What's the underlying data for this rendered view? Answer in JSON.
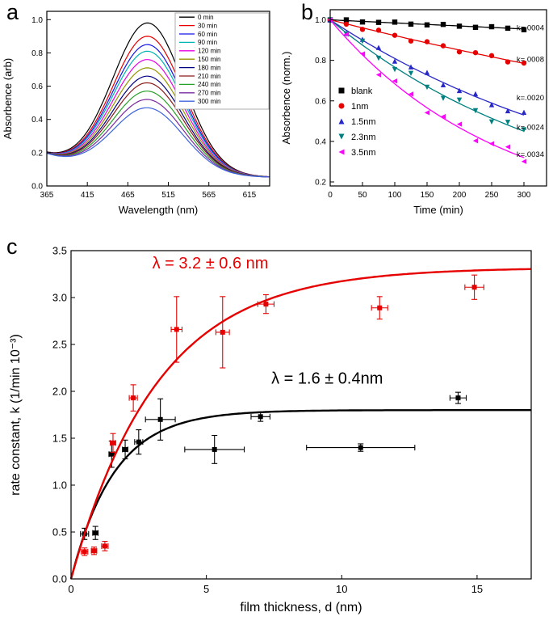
{
  "figure": {
    "background": "#ffffff",
    "panels": {
      "a": "a",
      "b": "b",
      "c": "c"
    }
  },
  "chart_data": [
    {
      "id": "a",
      "type": "line",
      "title": "",
      "xlabel": "Wavelength (nm)",
      "ylabel": "Absorbence (arb)",
      "xlim": [
        365,
        640
      ],
      "ylim": [
        0,
        1.05
      ],
      "xticks": [
        365,
        415,
        465,
        515,
        565,
        615
      ],
      "yticks": [
        0,
        0.2,
        0.4,
        0.6,
        0.8,
        1.0
      ],
      "legend_position": "top-right",
      "peak_center_nm": 490,
      "peak_sigma_nm": 62,
      "baseline": {
        "offset": 0.05,
        "amp": 0.14,
        "decay_nm": 70
      },
      "series": [
        {
          "label": "0 min",
          "color": "#000000",
          "peak_absorbance": 0.98
        },
        {
          "label": "30 min",
          "color": "#e60000",
          "peak_absorbance": 0.9
        },
        {
          "label": "60 min",
          "color": "#1414e6",
          "peak_absorbance": 0.85
        },
        {
          "label": "90 min",
          "color": "#00b4b4",
          "peak_absorbance": 0.81
        },
        {
          "label": "120 min",
          "color": "#e600e6",
          "peak_absorbance": 0.76
        },
        {
          "label": "150 min",
          "color": "#969600",
          "peak_absorbance": 0.71
        },
        {
          "label": "180 min",
          "color": "#000082",
          "peak_absorbance": 0.66
        },
        {
          "label": "210 min",
          "color": "#8c1a1a",
          "peak_absorbance": 0.62
        },
        {
          "label": "240 min",
          "color": "#28a028",
          "peak_absorbance": 0.57
        },
        {
          "label": "270 min",
          "color": "#7a28a0",
          "peak_absorbance": 0.52
        },
        {
          "label": "300 min",
          "color": "#3c64dc",
          "peak_absorbance": 0.47
        }
      ]
    },
    {
      "id": "b",
      "type": "scatter",
      "xlabel": "Time (min)",
      "ylabel": "Absorbence (norm.)",
      "xlim": [
        0,
        335
      ],
      "ylim": [
        0.18,
        1.05
      ],
      "xticks": [
        0,
        50,
        100,
        150,
        200,
        250,
        300
      ],
      "yticks": [
        0.2,
        0.4,
        0.6,
        0.8,
        1.0
      ],
      "time_points_min": [
        0,
        25,
        50,
        75,
        100,
        125,
        150,
        175,
        200,
        225,
        250,
        275,
        300
      ],
      "series": [
        {
          "label": "blank",
          "marker": "square",
          "color": "#000000",
          "k_label": "k=.0004",
          "value_at_300min": 0.955,
          "k_label_y": 0.96
        },
        {
          "label": "1nm",
          "marker": "circle",
          "color": "#e60000",
          "k_label": "k=.0008",
          "value_at_300min": 0.785,
          "k_label_y": 0.805
        },
        {
          "label": "1.5nm",
          "marker": "triangle-up",
          "color": "#2828c8",
          "k_label": "k=.0020",
          "value_at_300min": 0.53,
          "k_label_y": 0.615
        },
        {
          "label": "2.3nm",
          "marker": "triangle-down",
          "color": "#008080",
          "k_label": "k=.0024",
          "value_at_300min": 0.45,
          "k_label_y": 0.47
        },
        {
          "label": "3.5nm",
          "marker": "triangle-left",
          "color": "#ff00ff",
          "k_label": "k=.0034",
          "value_at_300min": 0.32,
          "k_label_y": 0.335
        }
      ]
    },
    {
      "id": "c",
      "type": "scatter",
      "xlabel": "film thickness, d (nm)",
      "ylabel": "rate constant, k (1/min 10⁻³)",
      "xlim": [
        0,
        17
      ],
      "ylim": [
        0,
        3.5
      ],
      "xticks": [
        0,
        5,
        10,
        15
      ],
      "yticks": [
        0,
        0.5,
        1.0,
        1.5,
        2.0,
        2.5,
        3.0,
        3.5
      ],
      "series": [
        {
          "name": "black-series",
          "color": "#000000",
          "fit": {
            "k_max": 1.8,
            "lambda_nm": 1.6
          },
          "annotation": {
            "text": "λ = 1.6 ± 0.4nm",
            "x": 7.4,
            "y": 2.08
          },
          "points": [
            {
              "x": 0.5,
              "y": 0.48,
              "xerr": 0.15,
              "yerr": 0.06
            },
            {
              "x": 0.9,
              "y": 0.49,
              "xerr": 0.1,
              "yerr": 0.07
            },
            {
              "x": 1.5,
              "y": 1.33,
              "xerr": 0.1,
              "yerr": 0.14
            },
            {
              "x": 2.0,
              "y": 1.38,
              "xerr": 0.1,
              "yerr": 0.1
            },
            {
              "x": 2.5,
              "y": 1.46,
              "xerr": 0.15,
              "yerr": 0.13
            },
            {
              "x": 3.3,
              "y": 1.7,
              "xerr": 0.55,
              "yerr": 0.22
            },
            {
              "x": 5.3,
              "y": 1.38,
              "xerr": 1.1,
              "yerr": 0.15
            },
            {
              "x": 7.0,
              "y": 1.73,
              "xerr": 0.35,
              "yerr": 0.05
            },
            {
              "x": 10.7,
              "y": 1.4,
              "xerr": 2.0,
              "yerr": 0.04
            },
            {
              "x": 14.3,
              "y": 1.93,
              "xerr": 0.3,
              "yerr": 0.06
            }
          ]
        },
        {
          "name": "red-series",
          "color": "#e60000",
          "fit": {
            "k_max": 3.32,
            "lambda_nm": 3.2
          },
          "annotation": {
            "text": "λ = 3.2 ± 0.6 nm",
            "x": 3.0,
            "y": 3.31
          },
          "points": [
            {
              "x": 0.5,
              "y": 0.29,
              "xerr": 0.12,
              "yerr": 0.04
            },
            {
              "x": 0.85,
              "y": 0.3,
              "xerr": 0.1,
              "yerr": 0.04
            },
            {
              "x": 1.25,
              "y": 0.35,
              "xerr": 0.12,
              "yerr": 0.05
            },
            {
              "x": 1.55,
              "y": 1.45,
              "xerr": 0.1,
              "yerr": 0.1
            },
            {
              "x": 2.3,
              "y": 1.93,
              "xerr": 0.15,
              "yerr": 0.14
            },
            {
              "x": 3.9,
              "y": 2.66,
              "xerr": 0.2,
              "yerr": 0.35
            },
            {
              "x": 5.6,
              "y": 2.63,
              "xerr": 0.25,
              "yerr": 0.38
            },
            {
              "x": 7.2,
              "y": 2.93,
              "xerr": 0.3,
              "yerr": 0.1
            },
            {
              "x": 11.4,
              "y": 2.89,
              "xerr": 0.3,
              "yerr": 0.12
            },
            {
              "x": 14.9,
              "y": 3.11,
              "xerr": 0.35,
              "yerr": 0.13
            }
          ]
        }
      ]
    }
  ]
}
